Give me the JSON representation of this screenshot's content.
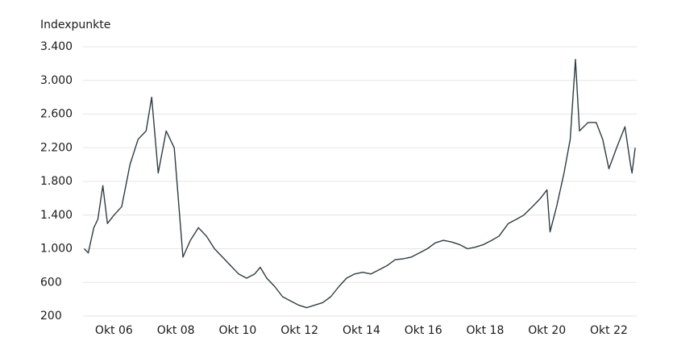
{
  "chart_data": {
    "type": "line",
    "y_label": "Indexpunkte",
    "x": [
      2005.79,
      2005.92,
      2006.1,
      2006.23,
      2006.39,
      2006.54,
      2006.75,
      2007.0,
      2007.27,
      2007.53,
      2007.79,
      2007.97,
      2008.18,
      2008.44,
      2008.7,
      2008.83,
      2008.98,
      2009.22,
      2009.48,
      2009.74,
      2010.0,
      2010.26,
      2010.52,
      2010.78,
      2011.04,
      2011.3,
      2011.48,
      2011.69,
      2011.95,
      2012.2,
      2012.46,
      2012.72,
      2012.98,
      2013.24,
      2013.5,
      2013.76,
      2014.02,
      2014.27,
      2014.53,
      2014.79,
      2015.06,
      2015.32,
      2015.58,
      2015.84,
      2016.1,
      2016.36,
      2016.62,
      2016.88,
      2017.14,
      2017.4,
      2017.66,
      2017.92,
      2018.18,
      2018.44,
      2018.7,
      2018.96,
      2019.2,
      2019.5,
      2019.76,
      2020.0,
      2020.28,
      2020.54,
      2020.75,
      2020.85,
      2021.06,
      2021.3,
      2021.5,
      2021.67,
      2021.8,
      2022.08,
      2022.34,
      2022.55,
      2022.75,
      2023.0,
      2023.27,
      2023.45,
      2023.5,
      2023.6
    ],
    "series": [
      {
        "name": "Index",
        "color": "#2e3d42",
        "values": [
          1000,
          950,
          1250,
          1350,
          1750,
          1300,
          1400,
          1500,
          2000,
          2300,
          2400,
          2800,
          1900,
          2400,
          2200,
          1600,
          900,
          1100,
          1250,
          1150,
          1000,
          900,
          800,
          700,
          650,
          700,
          780,
          650,
          550,
          430,
          380,
          330,
          300,
          330,
          360,
          430,
          550,
          650,
          700,
          720,
          700,
          750,
          800,
          870,
          880,
          900,
          950,
          1000,
          1070,
          1100,
          1080,
          1050,
          1000,
          1020,
          1050,
          1100,
          1150,
          1300,
          1350,
          1400,
          1500,
          1600,
          1700,
          1200,
          1500,
          1900,
          2300,
          3250,
          2400,
          2500,
          2500,
          2300,
          1950,
          2200,
          2450,
          2000,
          1900,
          2200
        ]
      }
    ],
    "xlim": [
      2005.75,
      2023.65
    ],
    "xticks": [
      {
        "value": 2006.75,
        "label": "Okt 06"
      },
      {
        "value": 2008.75,
        "label": "Okt 08"
      },
      {
        "value": 2010.75,
        "label": "Okt 10"
      },
      {
        "value": 2012.75,
        "label": "Okt 12"
      },
      {
        "value": 2014.75,
        "label": "Okt 14"
      },
      {
        "value": 2016.75,
        "label": "Okt 16"
      },
      {
        "value": 2018.75,
        "label": "Okt 18"
      },
      {
        "value": 2020.75,
        "label": "Okt 20"
      },
      {
        "value": 2022.75,
        "label": "Okt 22"
      }
    ],
    "ylim": [
      200,
      3400
    ],
    "yticks": [
      200,
      600,
      {
        "value": 1000,
        "label": "1.000"
      },
      {
        "value": 1400,
        "label": "1.400"
      },
      {
        "value": 1800,
        "label": "1.800"
      },
      {
        "value": 2200,
        "label": "2.200"
      },
      {
        "value": 2600,
        "label": "2.600"
      },
      {
        "value": 3000,
        "label": "3.000"
      },
      {
        "value": 3400,
        "label": "3.400"
      }
    ],
    "grid": true
  }
}
